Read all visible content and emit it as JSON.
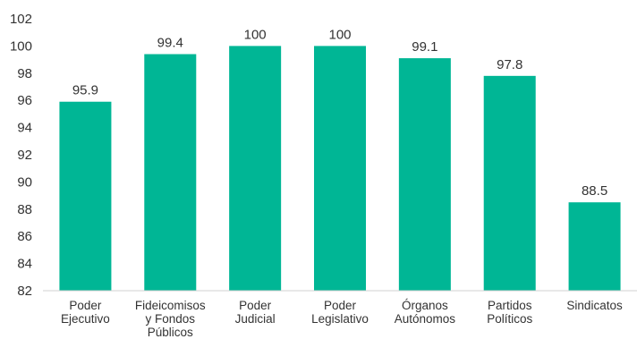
{
  "chart_data": {
    "type": "bar",
    "categories": [
      [
        "Poder",
        "Ejecutivo"
      ],
      [
        "Fideicomisos",
        "y Fondos",
        "Públicos"
      ],
      [
        "Poder",
        "Judicial"
      ],
      [
        "Poder",
        "Legislativo"
      ],
      [
        "Órganos",
        "Autónomos"
      ],
      [
        "Partidos",
        "Políticos"
      ],
      [
        "Sindicatos"
      ]
    ],
    "values": [
      95.9,
      99.4,
      100,
      100,
      99.1,
      97.8,
      88.5
    ],
    "value_labels": [
      "95.9",
      "99.4",
      "100",
      "100",
      "99.1",
      "97.8",
      "88.5"
    ],
    "title": "",
    "xlabel": "",
    "ylabel": "",
    "ylim": [
      82,
      102
    ],
    "yticks": [
      82,
      84,
      86,
      88,
      90,
      92,
      94,
      96,
      98,
      100,
      102
    ],
    "grid": false,
    "legend": "none",
    "colors": {
      "bar": "#00b695",
      "axis": "#d0d0d0",
      "text": "#333333"
    }
  }
}
